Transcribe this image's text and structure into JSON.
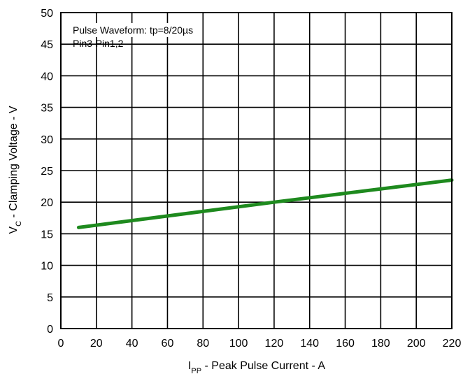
{
  "chart_data": {
    "type": "line",
    "x_title": {
      "main": "I",
      "sub": "PP",
      "rest": " - Peak Pulse Current - A"
    },
    "y_title": {
      "main": "V",
      "sub": "C",
      "rest": " - Clamping Voltage - V"
    },
    "xlim": [
      0,
      220
    ],
    "ylim": [
      0,
      50
    ],
    "x_ticks": [
      "0",
      "20",
      "40",
      "60",
      "80",
      "100",
      "120",
      "140",
      "160",
      "180",
      "200",
      "220"
    ],
    "y_ticks": [
      "0",
      "5",
      "10",
      "15",
      "20",
      "25",
      "30",
      "35",
      "40",
      "45",
      "50"
    ],
    "grid": true,
    "annotations": [
      "Pulse Waveform: tp=8/20µs",
      "Pin3-Pin1,2"
    ],
    "series": [
      {
        "color": "#1e8a1e",
        "x": [
          10,
          120,
          220
        ],
        "y": [
          16,
          20,
          23.5
        ]
      }
    ]
  }
}
